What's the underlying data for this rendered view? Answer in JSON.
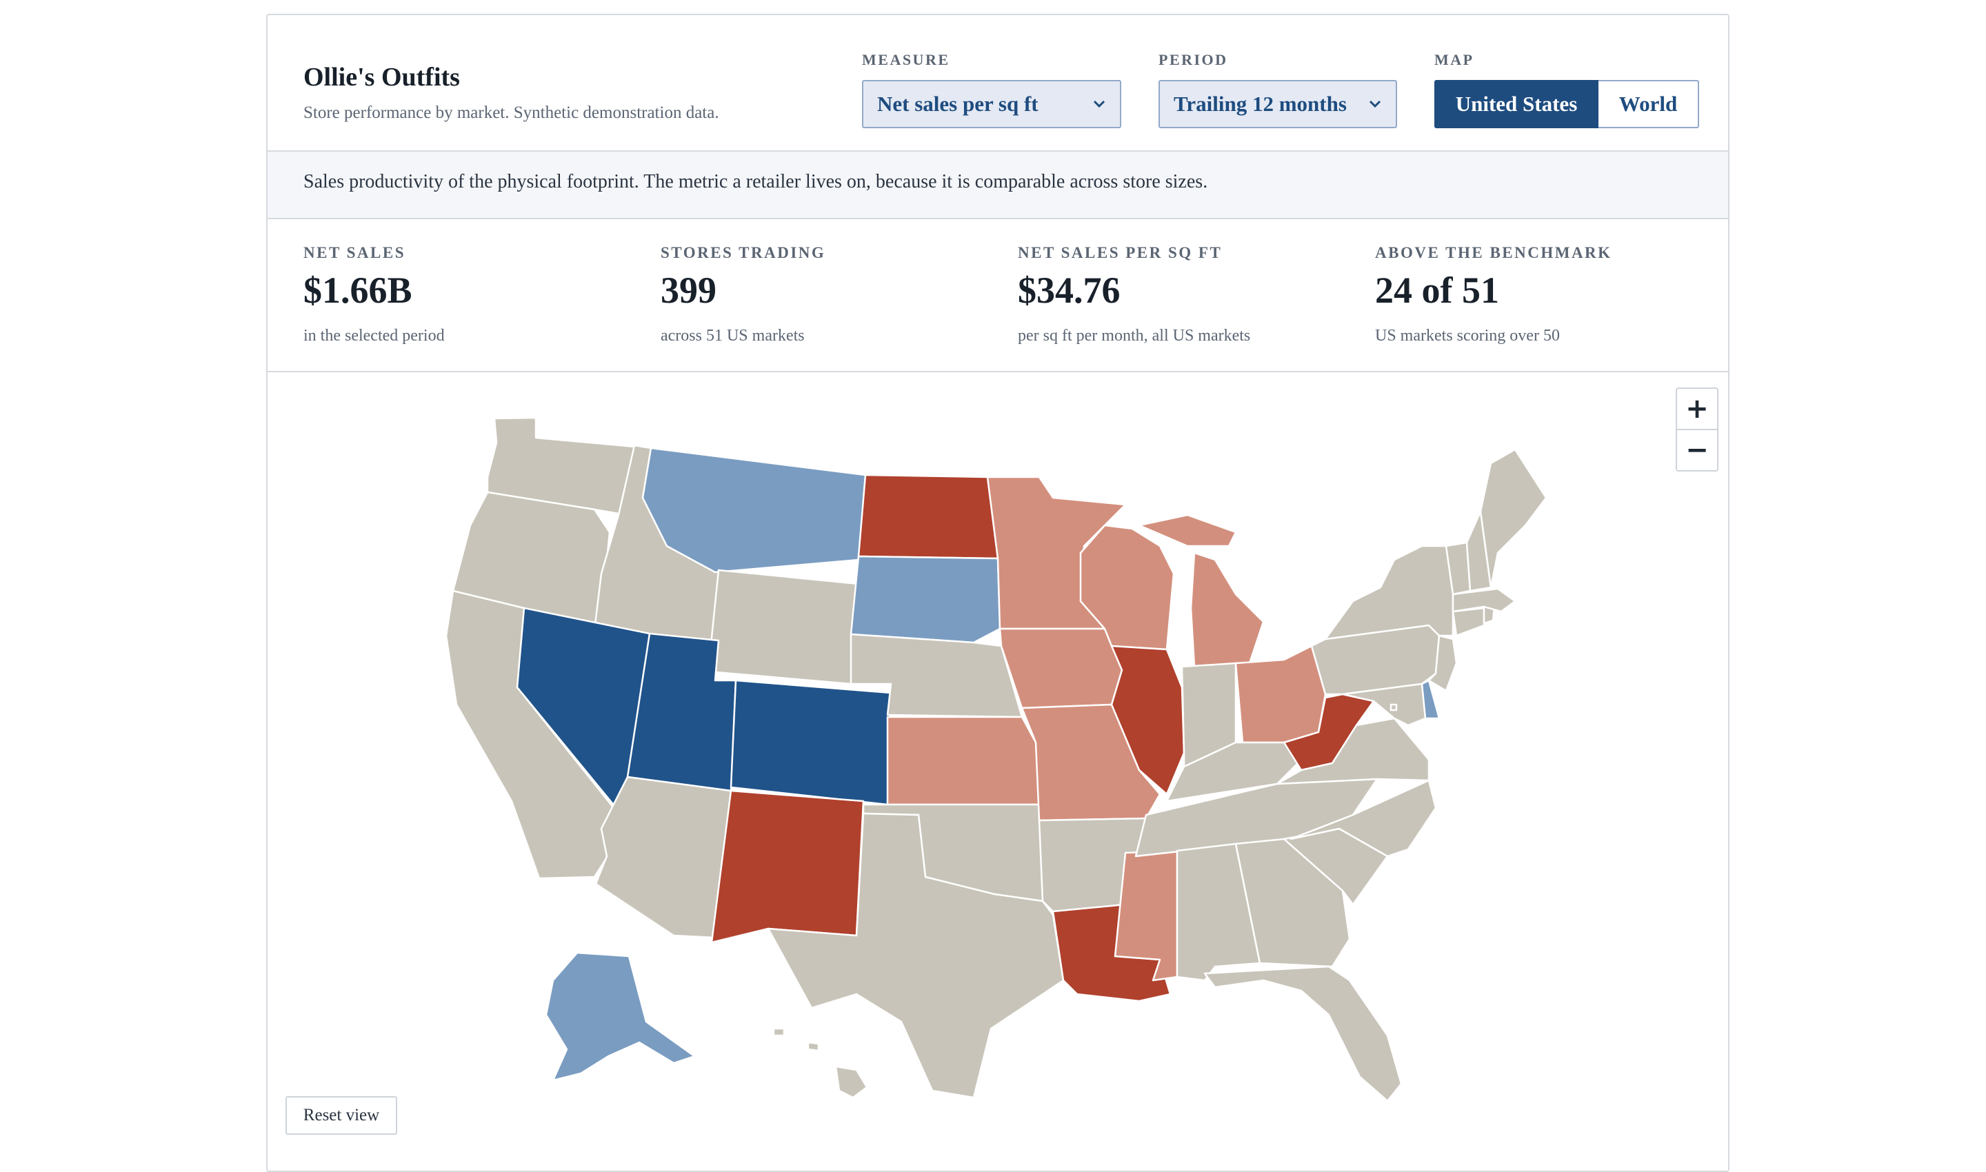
{
  "header": {
    "title": "Ollie's Outfits",
    "subtitle": "Store performance by market. Synthetic demonstration data."
  },
  "controls": {
    "measure_label": "MEASURE",
    "measure_value": "Net sales per sq ft",
    "period_label": "PERIOD",
    "period_value": "Trailing 12 months",
    "map_label": "MAP",
    "map_options": [
      "United States",
      "World"
    ],
    "map_selected": "United States"
  },
  "description": "Sales productivity of the physical footprint. The metric a retailer lives on, because it is comparable across store sizes.",
  "kpis": [
    {
      "label": "NET SALES",
      "value": "$1.66B",
      "sub": "in the selected period"
    },
    {
      "label": "STORES TRADING",
      "value": "399",
      "sub": "across 51 US markets"
    },
    {
      "label": "NET SALES PER SQ FT",
      "value": "$34.76",
      "sub": "per sq ft per month, all US markets"
    },
    {
      "label": "ABOVE THE BENCHMARK",
      "value": "24 of 51",
      "sub": "US markets scoring over 50"
    }
  ],
  "map": {
    "zoom_in": "+",
    "zoom_out": "−",
    "reset_label": "Reset view",
    "colors": {
      "strong_blue": "#20538a",
      "light_blue": "#7a9cc1",
      "neutral": "#c8c4b9",
      "light_red": "#d38f7d",
      "strong_red": "#b0412d"
    },
    "state_classes": {
      "NV": "strong_blue",
      "UT": "strong_blue",
      "CO": "strong_blue",
      "MT": "light_blue",
      "SD": "light_blue",
      "AK": "light_blue",
      "DE": "light_blue",
      "ND": "strong_red",
      "NM": "strong_red",
      "IL": "strong_red",
      "LA": "strong_red",
      "WV": "strong_red",
      "MN": "light_red",
      "WI": "light_red",
      "MI": "light_red",
      "IA": "light_red",
      "MO": "light_red",
      "KS": "light_red",
      "OH": "light_red",
      "MS": "light_red",
      "WA": "neutral",
      "OR": "neutral",
      "CA": "neutral",
      "ID": "neutral",
      "WY": "neutral",
      "NE": "neutral",
      "AZ": "neutral",
      "TX": "neutral",
      "OK": "neutral",
      "AR": "neutral",
      "TN": "neutral",
      "KY": "neutral",
      "IN": "neutral",
      "AL": "neutral",
      "GA": "neutral",
      "FL": "neutral",
      "SC": "neutral",
      "NC": "neutral",
      "VA": "neutral",
      "MD": "neutral",
      "PA": "neutral",
      "NY": "neutral",
      "NJ": "neutral",
      "CT": "neutral",
      "RI": "neutral",
      "MA": "neutral",
      "VT": "neutral",
      "NH": "neutral",
      "ME": "neutral",
      "HI": "neutral",
      "DC": "neutral"
    }
  }
}
